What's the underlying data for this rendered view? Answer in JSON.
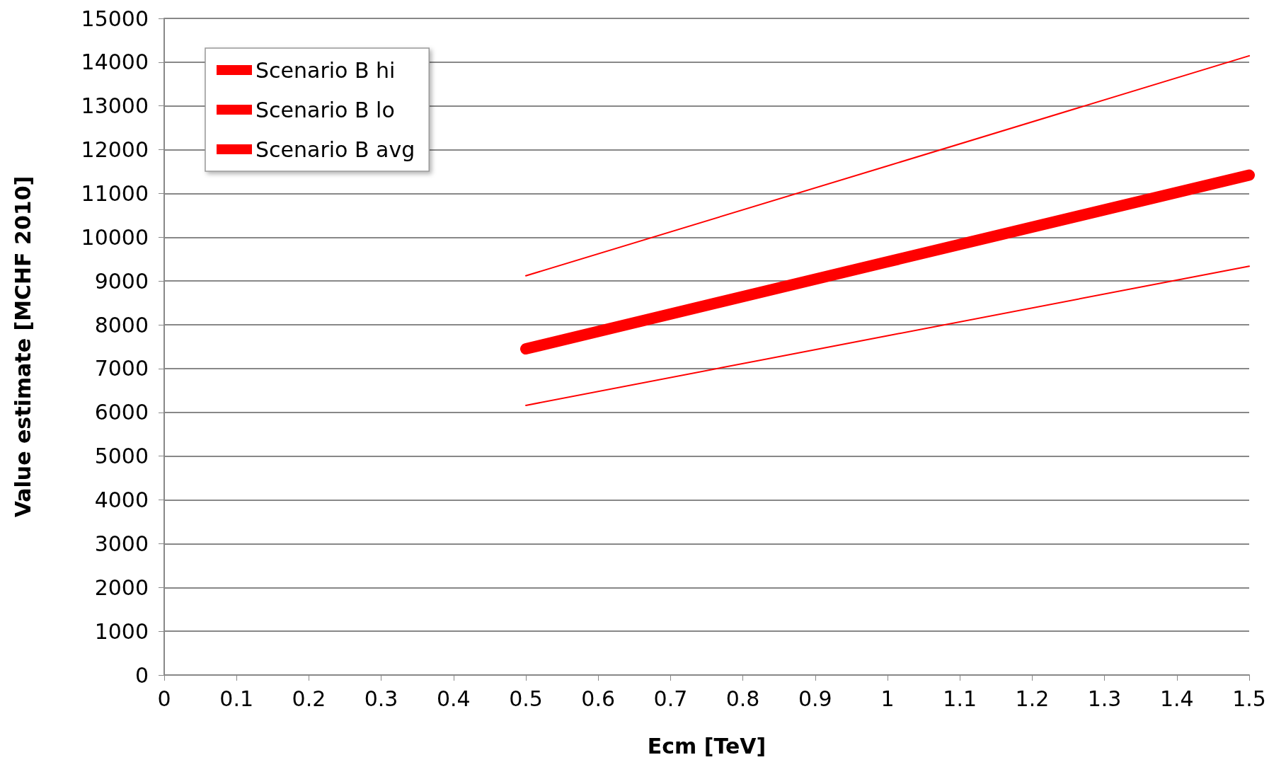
{
  "chart_data": {
    "type": "line",
    "xlabel": "Ecm [TeV]",
    "ylabel": "Value estimate [MCHF 2010]",
    "x": [
      0.5,
      1,
      1.5
    ],
    "series": [
      {
        "name": "Scenario B hi",
        "color": "#ff0000",
        "values": [
          9120,
          11630,
          14145
        ]
      },
      {
        "name": "Scenario B lo",
        "color": "#ff0000",
        "values": [
          6160,
          7750,
          9340
        ]
      },
      {
        "name": "Scenario B avg",
        "color": "#ff0000",
        "values": [
          7450,
          9440,
          11420
        ]
      }
    ],
    "xlim": [
      0,
      1.5
    ],
    "xticks": [
      0,
      0.1,
      0.2,
      0.3,
      0.4,
      0.5,
      0.6,
      0.7,
      0.8,
      0.9,
      1,
      1.1,
      1.2,
      1.3,
      1.4,
      1.5
    ],
    "ylim": [
      0,
      15000
    ],
    "yticks": [
      0,
      1000,
      2000,
      3000,
      4000,
      5000,
      6000,
      7000,
      8000,
      9000,
      10000,
      11000,
      12000,
      13000,
      14000,
      15000
    ],
    "grid": "y",
    "legend": "top left",
    "marker": "none",
    "line_style": "solid"
  }
}
